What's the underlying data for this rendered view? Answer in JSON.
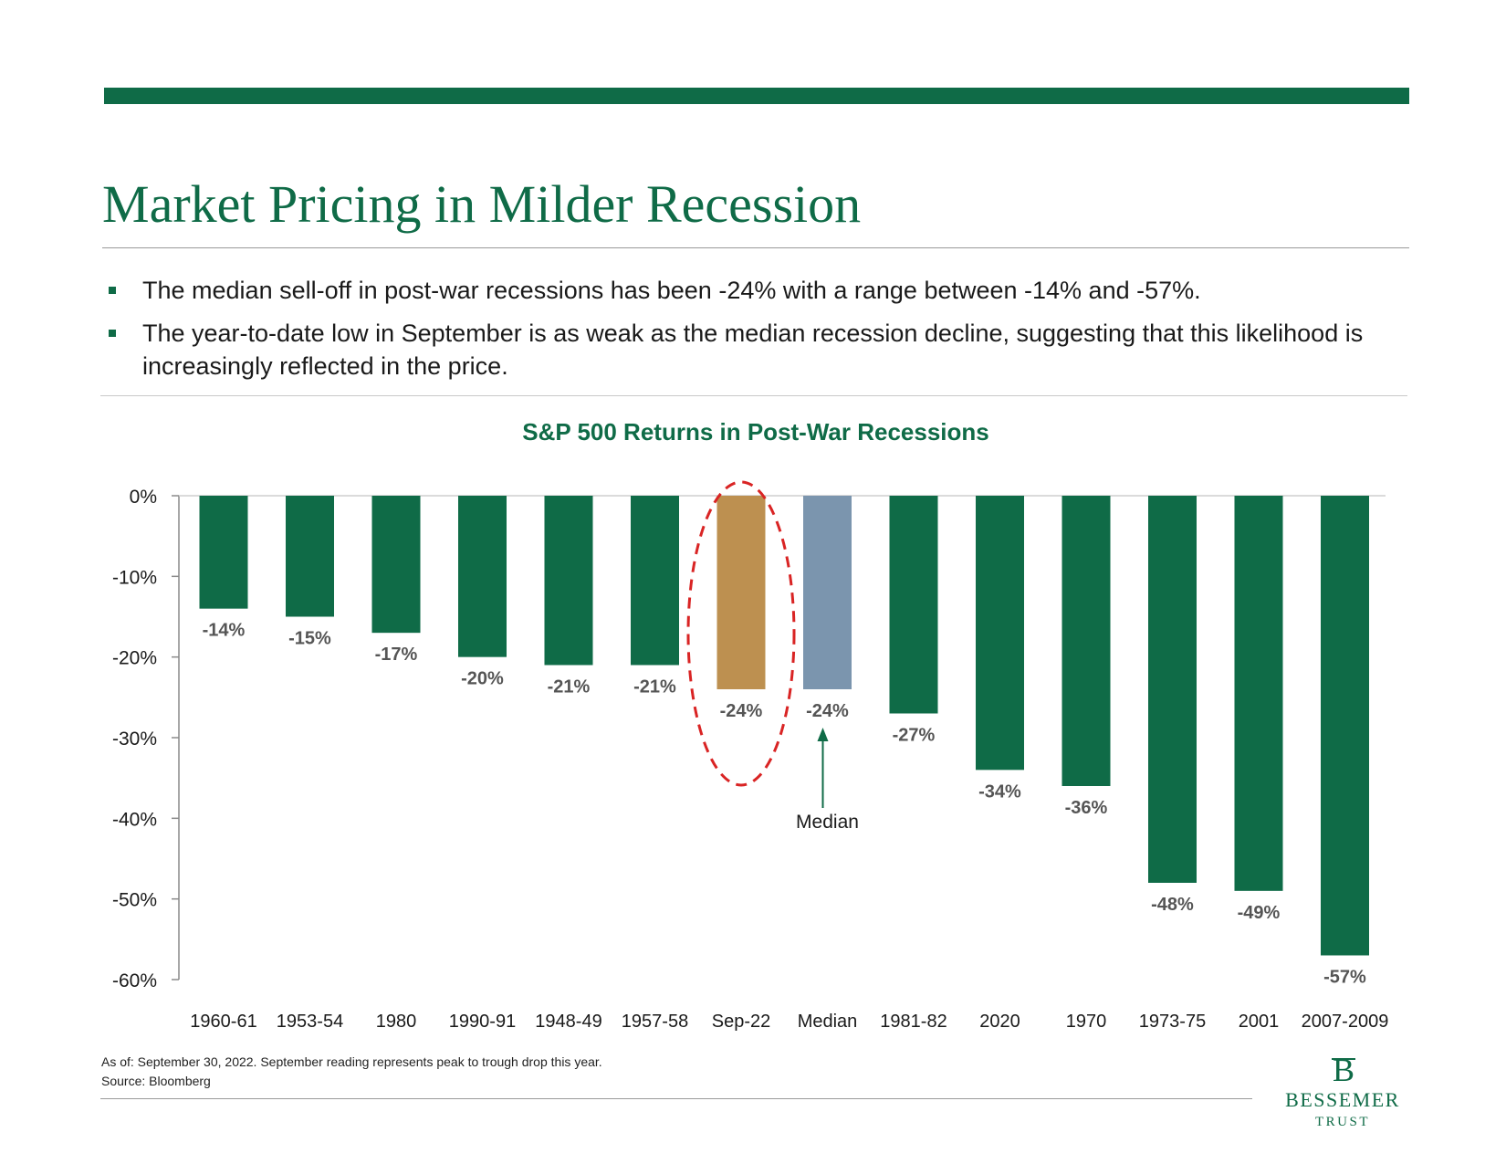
{
  "slide": {
    "title": "Market Pricing in Milder Recession",
    "bullets": [
      "The median sell-off in post-war recessions has been -24% with a range between -14% and -57%.",
      "The year-to-date low in September is as weak as the median recession decline, suggesting that this likelihood is increasingly reflected in the price."
    ],
    "footnotes": [
      "As of: September 30, 2022. September reading represents peak to trough drop this year.",
      "Source: Bloomberg"
    ],
    "logo": {
      "name": "BESSEMER",
      "sub": "TRUST",
      "mark": "B"
    }
  },
  "colors": {
    "brand_green": "#0f6b47",
    "highlight_gold": "#bd9050",
    "median_blue": "#7b95ae",
    "circle_red": "#d92424"
  },
  "chart_data": {
    "type": "bar",
    "title": "S&P 500 Returns in Post-War Recessions",
    "categories": [
      "1960-61",
      "1953-54",
      "1980",
      "1990-91",
      "1948-49",
      "1957-58",
      "Sep-22",
      "Median",
      "1981-82",
      "2020",
      "1970",
      "1973-75",
      "2001",
      "2007-2009"
    ],
    "values": [
      -14,
      -15,
      -17,
      -20,
      -21,
      -21,
      -24,
      -24,
      -27,
      -34,
      -36,
      -48,
      -49,
      -57
    ],
    "data_labels": [
      "-14%",
      "-15%",
      "-17%",
      "-20%",
      "-21%",
      "-21%",
      "-24%",
      "-24%",
      "-27%",
      "-34%",
      "-36%",
      "-48%",
      "-49%",
      "-57%"
    ],
    "highlight": {
      "Sep-22": "gold",
      "Median": "blue"
    },
    "ylim": [
      -60,
      0
    ],
    "yticks": [
      0,
      -10,
      -20,
      -30,
      -40,
      -50,
      -60
    ],
    "ytick_labels": [
      "0%",
      "-10%",
      "-20%",
      "-30%",
      "-40%",
      "-50%",
      "-60%"
    ],
    "xlabel": "",
    "ylabel": "",
    "grid": false,
    "annotations": [
      {
        "text": "Median",
        "target": "Median",
        "arrow": true
      },
      {
        "shape": "dashed-ellipse",
        "target": "Sep-22"
      }
    ]
  }
}
